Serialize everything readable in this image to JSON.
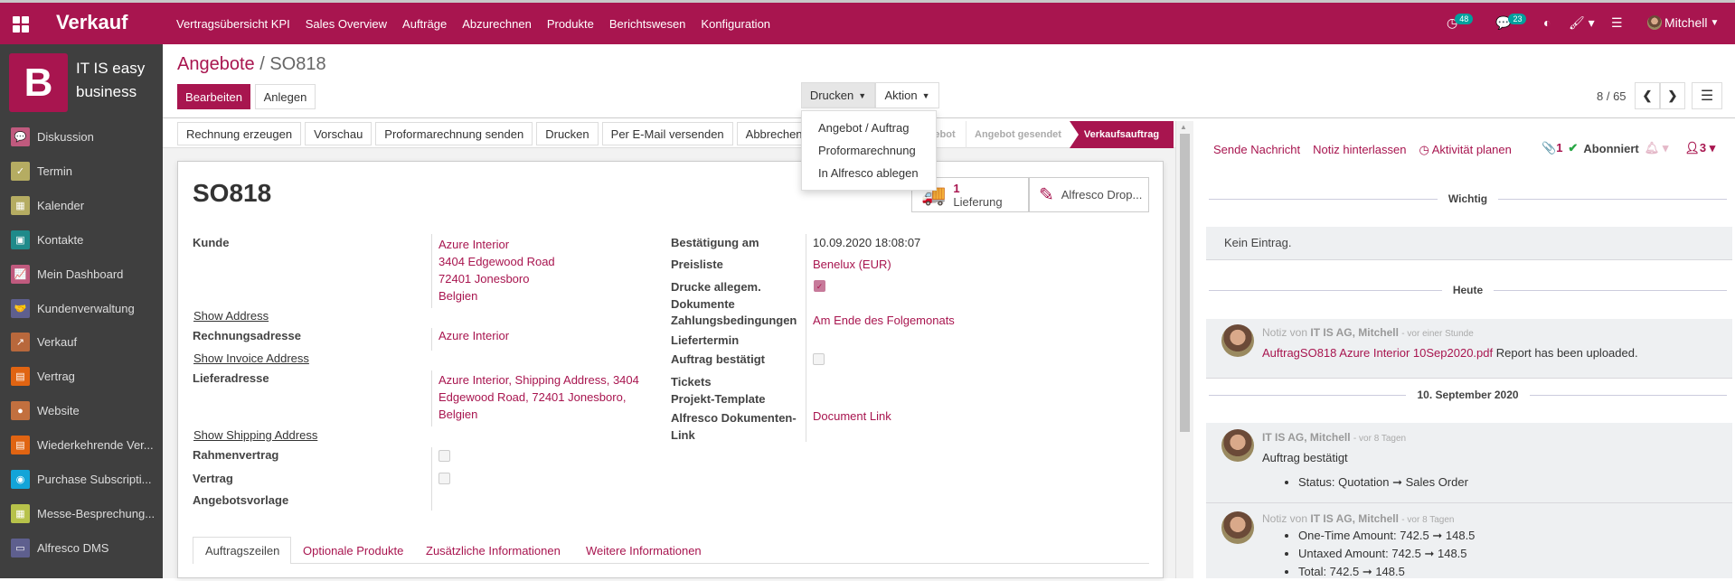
{
  "topbar": {
    "app_title": "Verkauf",
    "menu": [
      "Vertragsübersicht KPI",
      "Sales Overview",
      "Aufträge",
      "Abzurechnen",
      "Produkte",
      "Berichtswesen",
      "Konfiguration"
    ],
    "activity_count": "48",
    "message_count": "23",
    "user": "Mitchell",
    "brand_color": "#a8154f",
    "badge_color": "#00a09d"
  },
  "sidebar": {
    "logo_letter": "B",
    "company": "IT IS easy business",
    "items": [
      {
        "label": "Diskussion",
        "icon": "chat-icon",
        "color": "#c05a7e",
        "glyph": "💬"
      },
      {
        "label": "Termin",
        "icon": "calendar-check-icon",
        "color": "#b5ac62",
        "glyph": "✓"
      },
      {
        "label": "Kalender",
        "icon": "calendar-icon",
        "color": "#b5ac62",
        "glyph": "▦"
      },
      {
        "label": "Kontakte",
        "icon": "address-book-icon",
        "color": "#1f8a8a",
        "glyph": "▣"
      },
      {
        "label": "Mein Dashboard",
        "icon": "dashboard-icon",
        "color": "#c05a7e",
        "glyph": "📈"
      },
      {
        "label": "Kundenverwaltung",
        "icon": "handshake-icon",
        "color": "#5e5f8e",
        "glyph": "🤝"
      },
      {
        "label": "Verkauf",
        "icon": "sales-chart-icon",
        "color": "#b8683c",
        "glyph": "↗"
      },
      {
        "label": "Vertrag",
        "icon": "contract-icon",
        "color": "#e06412",
        "glyph": "▤"
      },
      {
        "label": "Website",
        "icon": "globe-icon",
        "color": "#c2703f",
        "glyph": "●"
      },
      {
        "label": "Wiederkehrende Ver...",
        "icon": "recurring-contract-icon",
        "color": "#e06412",
        "glyph": "▤"
      },
      {
        "label": "Purchase Subscripti...",
        "icon": "rss-icon",
        "color": "#13a4d8",
        "glyph": "◉"
      },
      {
        "label": "Messe-Besprechung...",
        "icon": "calendar-icon",
        "color": "#b7c24a",
        "glyph": "▦"
      },
      {
        "label": "Alfresco DMS",
        "icon": "archive-icon",
        "color": "#5e5f8e",
        "glyph": "▭"
      }
    ]
  },
  "breadcrumb": {
    "parent": "Angebote",
    "current": "SO818"
  },
  "controls": {
    "edit": "Bearbeiten",
    "create": "Anlegen",
    "print": "Drucken",
    "action": "Aktion",
    "pager": "8 / 65"
  },
  "print_menu": [
    "Angebot / Auftrag",
    "Proformarechnung",
    "In Alfresco ablegen"
  ],
  "header_buttons": [
    "Rechnung erzeugen",
    "Vorschau",
    "Proformarechnung senden",
    "Drucken",
    "Per E-Mail versenden",
    "Abbrechen"
  ],
  "statusbar": {
    "stages": [
      "Angebot",
      "Angebot gesendet",
      "Verkaufsauftrag"
    ],
    "active": "Verkaufsauftrag"
  },
  "smart_buttons": {
    "delivery_count": "1",
    "delivery_label": "Lieferung",
    "alfresco": "Alfresco Drop..."
  },
  "form": {
    "title": "SO818",
    "kunde_label": "Kunde",
    "kunde_lines": [
      "Azure Interior",
      "3404 Edgewood Road",
      "72401 Jonesboro",
      "Belgien"
    ],
    "show_address": "Show Address",
    "rechnung_label": "Rechnungsadresse",
    "rechnung_value": "Azure Interior",
    "show_invoice": "Show Invoice Address",
    "liefer_label": "Lieferadresse",
    "liefer_lines": [
      "Azure Interior, Shipping Address, 3404",
      "Edgewood Road, 72401 Jonesboro,",
      "Belgien"
    ],
    "show_shipping": "Show Shipping Address",
    "rahmen_label": "Rahmenvertrag",
    "rahmen_checked": false,
    "vertrag_label": "Vertrag",
    "vertrag_checked": false,
    "vorlage_label": "Angebotsvorlage",
    "bestaetigung_label": "Bestätigung am",
    "bestaetigung_value": "10.09.2020 18:08:07",
    "preisliste_label": "Preisliste",
    "preisliste_value": "Benelux (EUR)",
    "drucke_label_1": "Drucke allegem.",
    "drucke_label_2": "Dokumente",
    "drucke_checked": true,
    "zahlung_label": "Zahlungsbedingungen",
    "zahlung_value": "Am Ende des Folgemonats",
    "liefertermin_label": "Liefertermin",
    "auftrag_label": "Auftrag bestätigt",
    "auftrag_checked": false,
    "tickets_label": "Tickets",
    "projekt_label": "Projekt-Template",
    "alfresco_label_1": "Alfresco Dokumenten-",
    "alfresco_label_2": "Link",
    "alfresco_value": "Document Link",
    "tabs": [
      "Auftragszeilen",
      "Optionale Produkte",
      "Zusätzliche Informationen",
      "Weitere Informationen"
    ]
  },
  "chatter": {
    "send": "Sende Nachricht",
    "note": "Notiz hinterlassen",
    "activity": "Aktivität planen",
    "attachments": "1",
    "follow": "Abonniert",
    "followers": "3",
    "sep_important": "Wichtig",
    "no_entry": "Kein Eintrag.",
    "sep_today": "Heute",
    "sep_date": "10. September 2020",
    "messages": [
      {
        "prefix": "Notiz von",
        "author": "IT IS AG, Mitchell",
        "time": "- vor einer Stunde",
        "link": "AuftragSO818 Azure Interior 10Sep2020.pdf",
        "text": " Report has been uploaded."
      },
      {
        "prefix": "",
        "author": "IT IS AG, Mitchell",
        "time": "- vor 8 Tagen",
        "text": "Auftrag bestätigt",
        "changes": [
          "Status: Quotation ➞ Sales Order"
        ]
      },
      {
        "prefix": "Notiz von",
        "author": "IT IS AG, Mitchell",
        "time": "- vor 8 Tagen",
        "changes": [
          "One-Time Amount: 742.5 ➞ 148.5",
          "Untaxed Amount: 742.5 ➞ 148.5",
          "Total: 742.5 ➞ 148.5"
        ]
      }
    ]
  }
}
